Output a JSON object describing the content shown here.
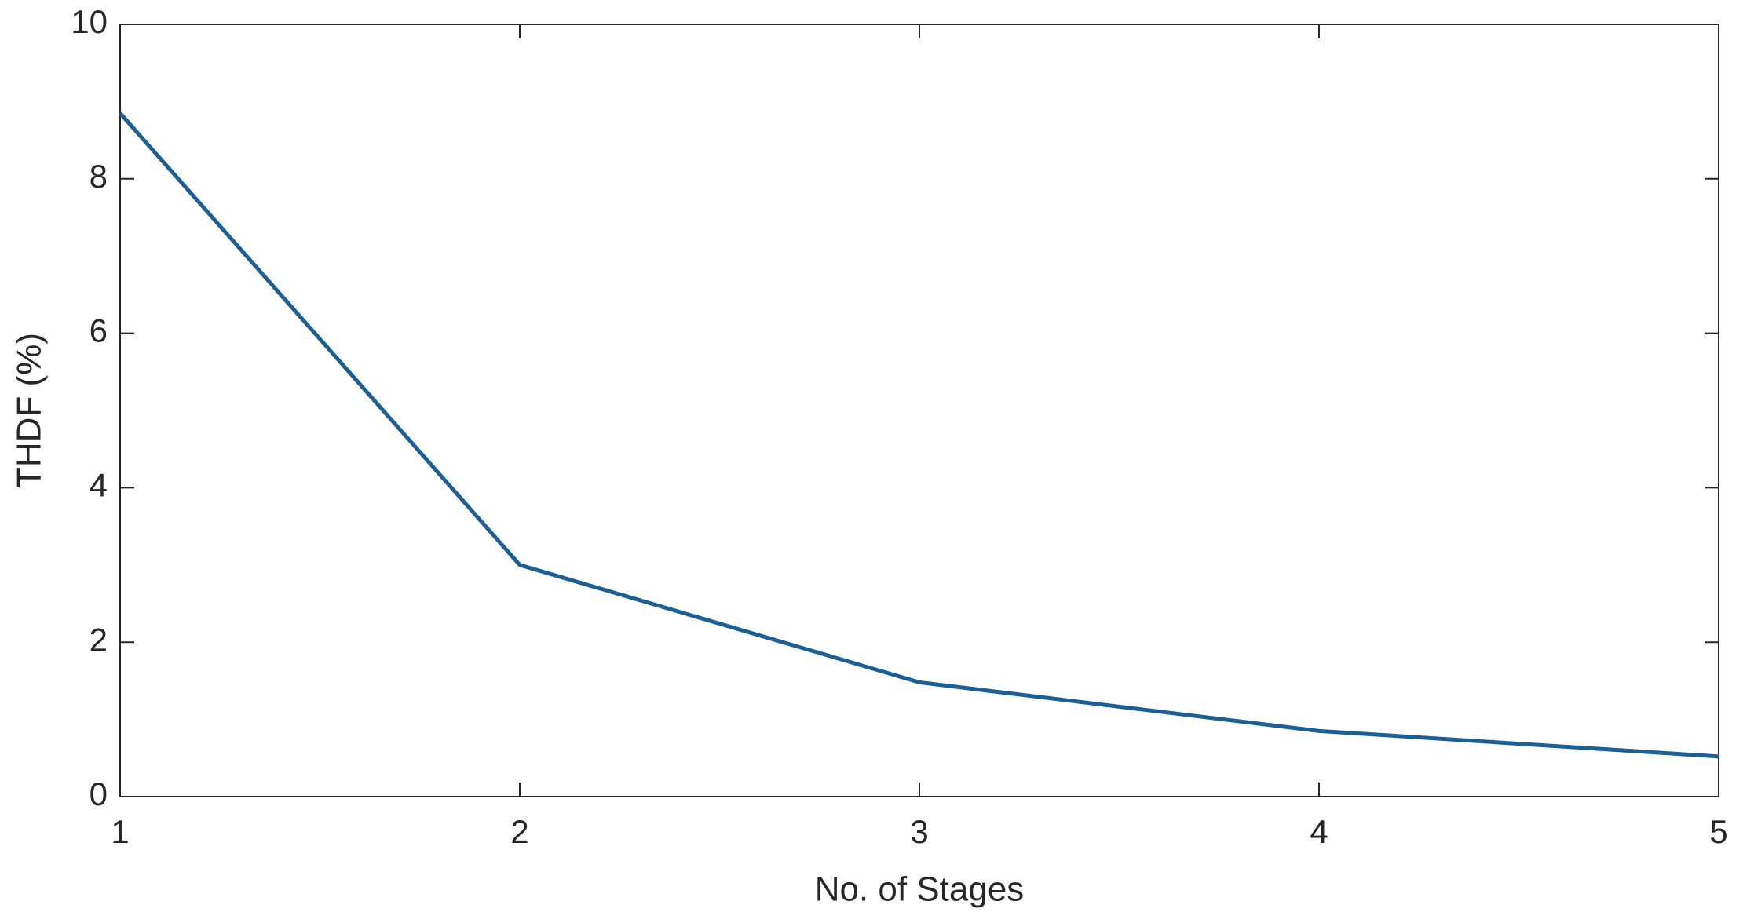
{
  "chart_data": {
    "type": "line",
    "x": [
      1,
      2,
      3,
      4,
      5
    ],
    "series": [
      {
        "color": "#1b5f95",
        "values": [
          8.85,
          3.0,
          1.48,
          0.85,
          0.52
        ]
      }
    ],
    "xlabel": "No. of Stages",
    "ylabel": "THDF (%)",
    "xlim": [
      1,
      5
    ],
    "xticks": [
      1,
      2,
      3,
      4,
      5
    ],
    "ylim": [
      0,
      10
    ],
    "yticks": [
      0,
      2,
      4,
      6,
      8,
      10
    ],
    "grid": false
  }
}
